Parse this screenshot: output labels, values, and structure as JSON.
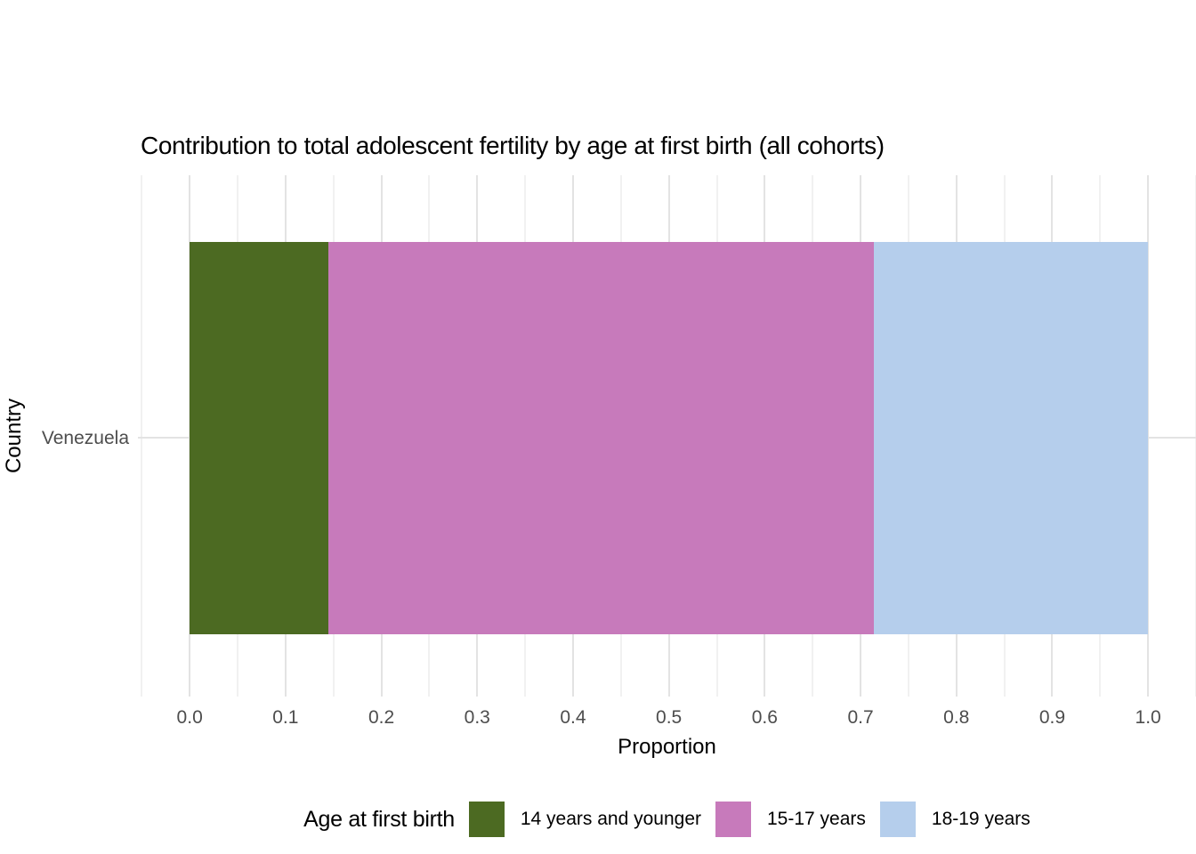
{
  "chart_data": {
    "type": "bar",
    "orientation": "horizontal",
    "stacked": true,
    "title": "Contribution to total adolescent fertility by age at first birth (all cohorts)",
    "xlabel": "Proportion",
    "ylabel": "Country",
    "categories": [
      "Venezuela"
    ],
    "series": [
      {
        "name": "14 years and younger",
        "color": "#4c6a22",
        "values": [
          0.145
        ]
      },
      {
        "name": "15-17 years",
        "color": "#c77abb",
        "values": [
          0.569
        ]
      },
      {
        "name": "18-19 years",
        "color": "#b5ceec",
        "values": [
          0.286
        ]
      }
    ],
    "segment_boundaries": [
      0,
      0.145,
      0.714,
      1.0
    ],
    "xlim": [
      -0.054,
      1.05
    ],
    "x_tick_values": [
      0.0,
      0.1,
      0.2,
      0.3,
      0.4,
      0.5,
      0.6,
      0.7,
      0.8,
      0.9,
      1.0
    ],
    "x_tick_labels": [
      "0.0",
      "0.1",
      "0.2",
      "0.3",
      "0.4",
      "0.5",
      "0.6",
      "0.7",
      "0.8",
      "0.9",
      "1.0"
    ],
    "grid_major_x": [
      0.0,
      0.1,
      0.2,
      0.3,
      0.4,
      0.5,
      0.6,
      0.7,
      0.8,
      0.9,
      1.0
    ],
    "grid_minor_x": [
      -0.05,
      0.05,
      0.15,
      0.25,
      0.35,
      0.45,
      0.55,
      0.65,
      0.75,
      0.85,
      0.95,
      1.05
    ],
    "grid": true,
    "legend_title": "Age at first birth",
    "legend_position": "bottom"
  },
  "colors": {
    "background": "#ffffff",
    "grid_major": "#e3e3e3",
    "grid_minor": "#f1f1f1",
    "tick_label": "#4d4d4d",
    "axis_title": "#000000",
    "title": "#000000"
  }
}
